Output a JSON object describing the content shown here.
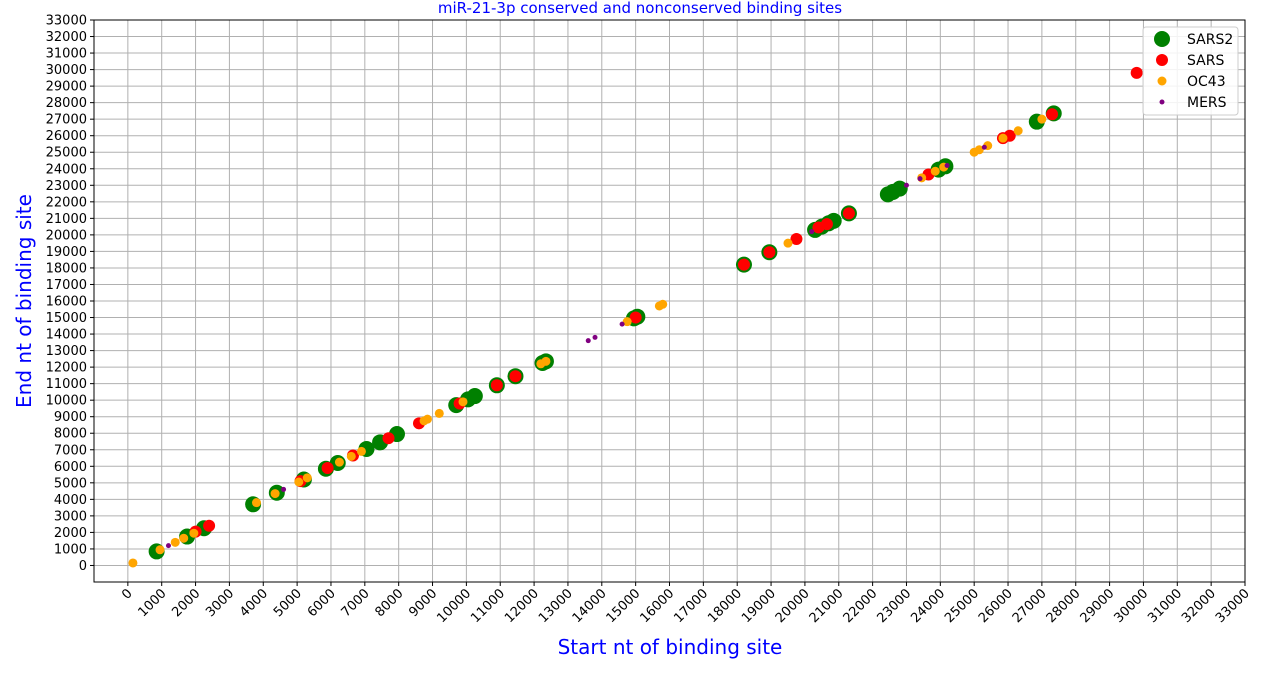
{
  "chart_data": {
    "type": "scatter",
    "title": "miR-21-3p conserved and nonconserved binding sites",
    "xlabel": "Start nt of binding site",
    "ylabel": "End nt of binding site",
    "xlim": [
      -1000,
      33000
    ],
    "ylim": [
      -1000,
      33000
    ],
    "xticks": [
      "0",
      "1000",
      "2000",
      "3000",
      "4000",
      "5000",
      "6000",
      "7000",
      "8000",
      "9000",
      "10000",
      "11000",
      "12000",
      "13000",
      "14000",
      "15000",
      "16000",
      "17000",
      "18000",
      "19000",
      "20000",
      "21000",
      "22000",
      "23000",
      "24000",
      "25000",
      "26000",
      "27000",
      "28000",
      "29000",
      "30000",
      "31000",
      "32000",
      "33000"
    ],
    "yticks": [
      "0",
      "1000",
      "2000",
      "3000",
      "4000",
      "5000",
      "6000",
      "7000",
      "8000",
      "9000",
      "10000",
      "11000",
      "12000",
      "13000",
      "14000",
      "15000",
      "16000",
      "17000",
      "18000",
      "19000",
      "20000",
      "21000",
      "22000",
      "23000",
      "24000",
      "25000",
      "26000",
      "27000",
      "28000",
      "29000",
      "30000",
      "31000",
      "32000",
      "33000"
    ],
    "grid": true,
    "legend_position": "top-right",
    "colors": {
      "title": "#0000ff",
      "axis_labels": "#0000ff",
      "grid": "#b0b0b0"
    },
    "series": [
      {
        "name": "SARS2",
        "color": "#008000",
        "marker": "large",
        "points": [
          [
            850,
            850
          ],
          [
            1750,
            1750
          ],
          [
            2250,
            2250
          ],
          [
            3700,
            3700
          ],
          [
            4400,
            4400
          ],
          [
            5200,
            5200
          ],
          [
            5850,
            5850
          ],
          [
            6200,
            6200
          ],
          [
            7050,
            7050
          ],
          [
            7450,
            7450
          ],
          [
            7950,
            7950
          ],
          [
            9700,
            9700
          ],
          [
            10050,
            10050
          ],
          [
            10250,
            10250
          ],
          [
            10900,
            10900
          ],
          [
            11450,
            11450
          ],
          [
            12250,
            12250
          ],
          [
            12350,
            12350
          ],
          [
            14950,
            14950
          ],
          [
            15050,
            15050
          ],
          [
            18200,
            18200
          ],
          [
            18950,
            18950
          ],
          [
            20300,
            20300
          ],
          [
            20500,
            20500
          ],
          [
            20700,
            20700
          ],
          [
            20850,
            20850
          ],
          [
            21300,
            21300
          ],
          [
            22450,
            22450
          ],
          [
            22600,
            22600
          ],
          [
            22800,
            22800
          ],
          [
            23950,
            23950
          ],
          [
            24150,
            24150
          ],
          [
            26850,
            26850
          ],
          [
            27350,
            27350
          ]
        ]
      },
      {
        "name": "SARS",
        "color": "#ff0000",
        "marker": "medium",
        "points": [
          [
            2000,
            2050
          ],
          [
            2400,
            2400
          ],
          [
            5100,
            5100
          ],
          [
            5900,
            5900
          ],
          [
            6650,
            6650
          ],
          [
            7700,
            7700
          ],
          [
            8600,
            8600
          ],
          [
            9800,
            9800
          ],
          [
            10900,
            10900
          ],
          [
            11450,
            11450
          ],
          [
            15000,
            15000
          ],
          [
            18200,
            18200
          ],
          [
            18950,
            18950
          ],
          [
            19750,
            19750
          ],
          [
            20400,
            20450
          ],
          [
            20650,
            20650
          ],
          [
            21300,
            21300
          ],
          [
            23650,
            23650
          ],
          [
            25850,
            25850
          ],
          [
            26050,
            26000
          ],
          [
            27300,
            27300
          ],
          [
            29800,
            29800
          ]
        ]
      },
      {
        "name": "OC43",
        "color": "#ffa500",
        "marker": "small",
        "points": [
          [
            150,
            150
          ],
          [
            950,
            950
          ],
          [
            1400,
            1400
          ],
          [
            1650,
            1650
          ],
          [
            1950,
            1950
          ],
          [
            3800,
            3800
          ],
          [
            4350,
            4350
          ],
          [
            5050,
            5050
          ],
          [
            5300,
            5300
          ],
          [
            6250,
            6250
          ],
          [
            6600,
            6600
          ],
          [
            6900,
            6900
          ],
          [
            8750,
            8750
          ],
          [
            8850,
            8850
          ],
          [
            9200,
            9200
          ],
          [
            9900,
            9900
          ],
          [
            12200,
            12200
          ],
          [
            12350,
            12350
          ],
          [
            14750,
            14750
          ],
          [
            15700,
            15700
          ],
          [
            15800,
            15800
          ],
          [
            19500,
            19500
          ],
          [
            23450,
            23450
          ],
          [
            23850,
            23850
          ],
          [
            24100,
            24100
          ],
          [
            25000,
            25000
          ],
          [
            25150,
            25150
          ],
          [
            25400,
            25400
          ],
          [
            25850,
            25850
          ],
          [
            26300,
            26300
          ],
          [
            27000,
            27000
          ]
        ]
      },
      {
        "name": "MERS",
        "color": "#800080",
        "marker": "tiny",
        "points": [
          [
            1200,
            1200
          ],
          [
            4600,
            4600
          ],
          [
            13600,
            13600
          ],
          [
            13800,
            13800
          ],
          [
            14600,
            14600
          ],
          [
            20200,
            20200
          ],
          [
            23000,
            23000
          ],
          [
            23400,
            23400
          ],
          [
            24200,
            24200
          ],
          [
            25300,
            25300
          ]
        ]
      }
    ]
  }
}
